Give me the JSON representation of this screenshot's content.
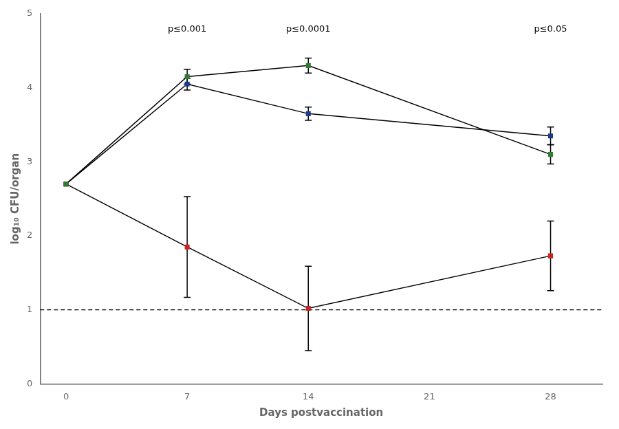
{
  "chart_data": {
    "type": "line",
    "x": [
      0,
      7,
      14,
      28
    ],
    "xlabel": "Days postvaccination",
    "ylabel": "log₁₀ CFU/organ",
    "xlim": [
      -1.5,
      31
    ],
    "xticks": [
      0,
      7,
      14,
      21,
      28
    ],
    "ylim": [
      0,
      5
    ],
    "yticks": [
      0,
      1,
      2,
      3,
      4,
      5
    ],
    "grid": false,
    "color": "#000000",
    "marker": "square",
    "series": [
      {
        "color": "#2e7d32",
        "values": [
          2.7,
          4.15,
          4.3,
          3.1
        ],
        "yerr": [
          0.0,
          0.1,
          0.1,
          0.13
        ]
      },
      {
        "color": "#1a3a8a",
        "values": [
          2.7,
          4.05,
          3.65,
          3.35
        ],
        "yerr": [
          0.0,
          0.08,
          0.09,
          0.12
        ]
      },
      {
        "color": "#cc2222",
        "values": [
          2.7,
          1.85,
          1.02,
          1.73
        ],
        "yerr": [
          0.0,
          0.68,
          0.57,
          0.47
        ]
      }
    ],
    "hline": {
      "y": 1.0,
      "line_style": "dashed"
    },
    "annotations": [
      {
        "x": 7,
        "y": 4.73,
        "text": "p≤0.001"
      },
      {
        "x": 14,
        "y": 4.73,
        "text": "p≤0.0001"
      },
      {
        "x": 28,
        "y": 4.73,
        "text": "p≤0.05"
      }
    ]
  }
}
